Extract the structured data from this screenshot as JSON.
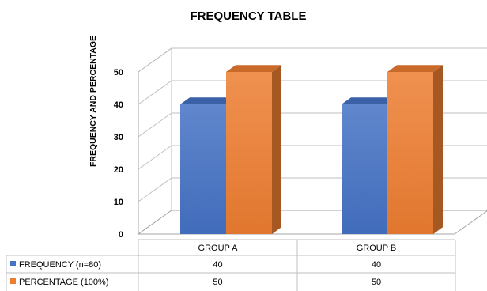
{
  "chart_data": {
    "type": "bar",
    "title": "FREQUENCY TABLE",
    "ylabel": "FREQUENCY  AND PERCENTAGE",
    "xlabel": "",
    "categories": [
      "GROUP A",
      "GROUP B"
    ],
    "series": [
      {
        "name": "FREQUENCY (n=80)",
        "values": [
          40,
          40
        ],
        "color": "#4472C4"
      },
      {
        "name": "PERCENTAGE (100%)",
        "values": [
          50,
          50
        ],
        "color": "#ED7D31"
      }
    ],
    "ylim": [
      0,
      50
    ],
    "yticks": [
      "0",
      "10",
      "20",
      "30",
      "40",
      "50"
    ],
    "grid": true,
    "three_d": true,
    "legend": "data-table-below"
  }
}
